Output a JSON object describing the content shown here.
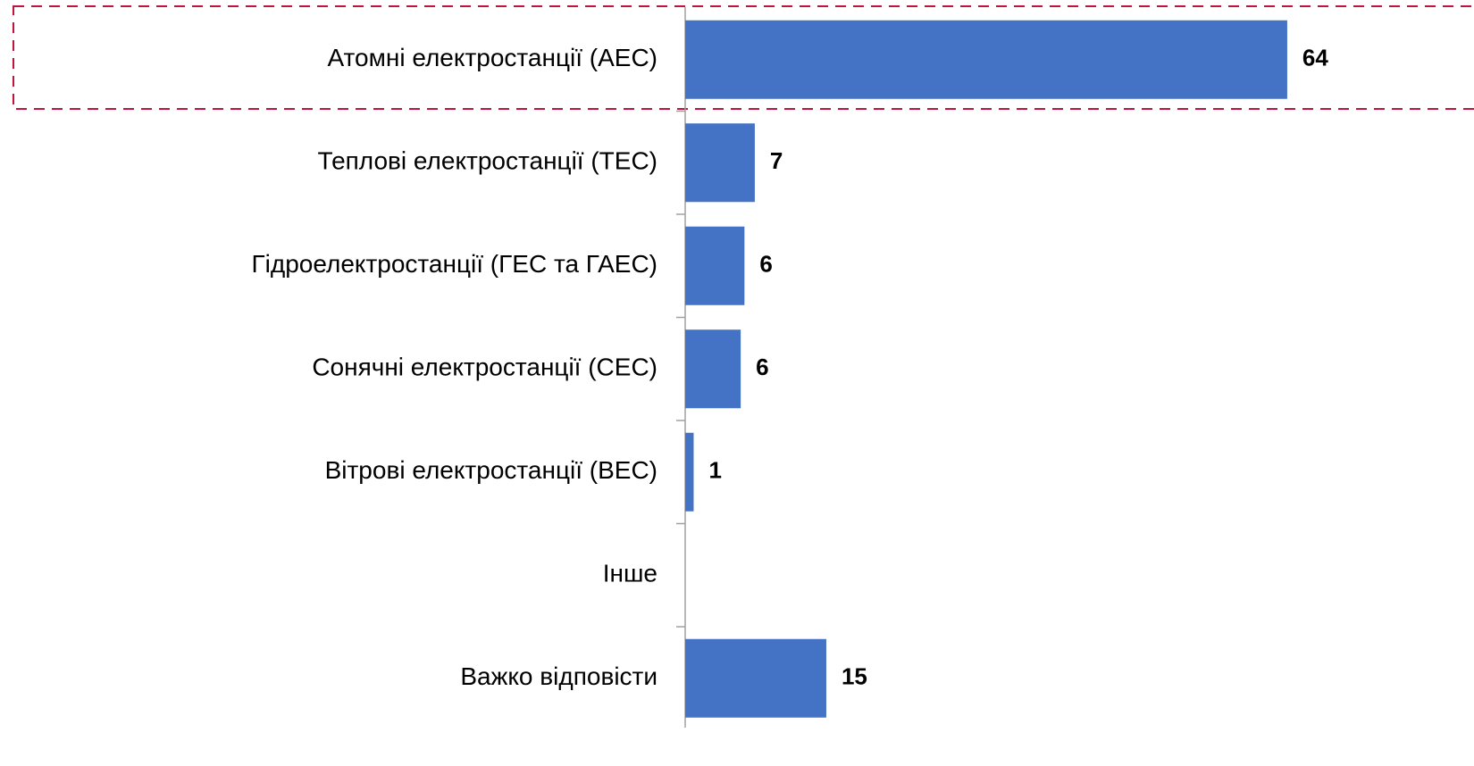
{
  "chart_data": {
    "type": "bar",
    "orientation": "horizontal",
    "categories": [
      "Атомні електростанції (АЕС)",
      "Теплові електростанції (ТЕС)",
      "Гідроелектростанції (ГЕС та ГАЕС)",
      "Сонячні електростанції (СЕС)",
      "Вітрові електростанції (ВЕС)",
      "Інше",
      "Важко відповісти"
    ],
    "values": [
      64,
      7.4,
      6.3,
      5.9,
      0.9,
      null,
      15
    ],
    "value_labels": [
      "64",
      "7",
      "6",
      "6",
      "1",
      null,
      "15"
    ],
    "color": "#4472c4"
  }
}
